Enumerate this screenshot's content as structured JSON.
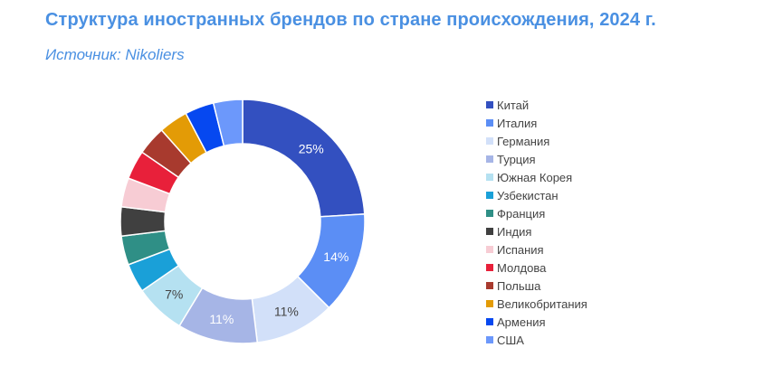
{
  "header": {
    "title": "Структура иностранных брендов по стране происхождения, 2024 г.",
    "subtitle": "Источник: Nikoliers"
  },
  "chart_data": {
    "type": "pie",
    "variant": "donut",
    "title": "Структура иностранных брендов по стране происхождения, 2024 г.",
    "legend_position": "right",
    "categories": [
      "Китай",
      "Италия",
      "Германия",
      "Турция",
      "Южная Корея",
      "Узбекистан",
      "Франция",
      "Индия",
      "Испания",
      "Молдова",
      "Польша",
      "Великобритания",
      "Армения",
      "США"
    ],
    "values": [
      25,
      14,
      11,
      11,
      7,
      4,
      4,
      4,
      4,
      4,
      4,
      4,
      4,
      4
    ],
    "value_labels": [
      "25%",
      "14%",
      "11%",
      "11%",
      "7%",
      "",
      "",
      "",
      "",
      "",
      "",
      "",
      "",
      ""
    ],
    "colors": [
      "#3350c0",
      "#5b8ef5",
      "#d2e0f9",
      "#a6b5e6",
      "#b5e1f1",
      "#1aa0d8",
      "#2f8f86",
      "#404040",
      "#f7ccd4",
      "#e8203a",
      "#a83a2e",
      "#e39b06",
      "#0648f0",
      "#6c98fb"
    ],
    "label_colors": [
      "#ffffff",
      "#ffffff",
      "#444444",
      "#ffffff",
      "#444444",
      "#ffffff",
      "#ffffff",
      "#ffffff",
      "#444444",
      "#ffffff",
      "#ffffff",
      "#ffffff",
      "#ffffff",
      "#ffffff"
    ]
  }
}
